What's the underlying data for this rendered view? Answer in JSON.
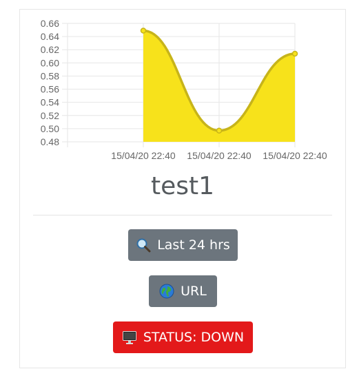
{
  "card": {
    "title": "test1"
  },
  "buttons": {
    "last24": {
      "label": "Last 24 hrs",
      "icon": "magnifier-icon"
    },
    "url": {
      "label": "URL",
      "icon": "globe-icon"
    },
    "status": {
      "label": "STATUS: DOWN",
      "icon": "monitor-icon"
    }
  },
  "colors": {
    "fill": "#f7e21b",
    "line": "#c7b41a",
    "gray_button": "#6c757d",
    "status_red": "#e3191a"
  },
  "chart_data": {
    "type": "area",
    "title": "",
    "xlabel": "",
    "ylabel": "",
    "x_categories": [
      "",
      "15/04/20 22:40",
      "15/04/20 22:40",
      "15/04/20 22:40"
    ],
    "y_ticks": [
      "0.66",
      "0.64",
      "0.62",
      "0.60",
      "0.58",
      "0.56",
      "0.54",
      "0.52",
      "0.50",
      "0.48"
    ],
    "ylim": [
      0.48,
      0.66
    ],
    "grid": true,
    "series": [
      {
        "values": [
          null,
          0.649,
          0.497,
          0.614
        ]
      }
    ]
  }
}
